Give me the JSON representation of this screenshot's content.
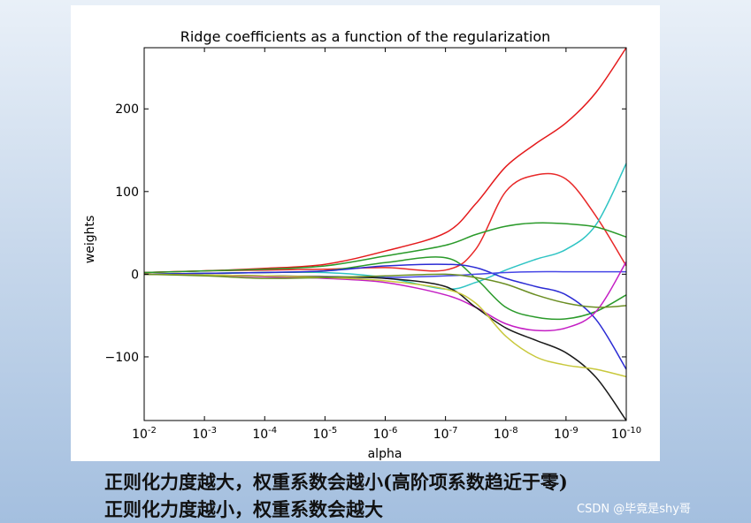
{
  "chart_data": {
    "type": "line",
    "title": "Ridge coefficients as a function of the regularization",
    "xlabel": "alpha",
    "ylabel": "weights",
    "x_scale": "log",
    "x_inverted": true,
    "xlim": [
      0.01,
      1e-10
    ],
    "ylim": [
      -177,
      274
    ],
    "x_ticks": [
      {
        "base": "10",
        "exp": "-2"
      },
      {
        "base": "10",
        "exp": "-3"
      },
      {
        "base": "10",
        "exp": "-4"
      },
      {
        "base": "10",
        "exp": "-5"
      },
      {
        "base": "10",
        "exp": "-6"
      },
      {
        "base": "10",
        "exp": "-7"
      },
      {
        "base": "10",
        "exp": "-8"
      },
      {
        "base": "10",
        "exp": "-9"
      },
      {
        "base": "10",
        "exp": "-10"
      }
    ],
    "y_ticks": [
      "200",
      "100",
      "0",
      "−100"
    ],
    "y_tick_values": [
      200,
      100,
      0,
      -100
    ],
    "grid": false,
    "alpha_exponents": [
      -2,
      -3,
      -4,
      -5,
      -6,
      -7,
      -7.5,
      -8,
      -8.5,
      -9,
      -9.5,
      -10
    ],
    "series": [
      {
        "color": "#e41a1c",
        "values": [
          2,
          4,
          7,
          12,
          28,
          50,
          85,
          130,
          158,
          183,
          220,
          274
        ]
      },
      {
        "color": "#e82828",
        "values": [
          2,
          4,
          5,
          6,
          8,
          5,
          30,
          100,
          120,
          115,
          70,
          10
        ]
      },
      {
        "color": "#2ec4c4",
        "values": [
          0,
          1,
          2,
          2,
          -4,
          -18,
          -10,
          5,
          18,
          30,
          60,
          134
        ]
      },
      {
        "color": "#2a9a2a",
        "values": [
          2,
          4,
          6,
          10,
          22,
          35,
          48,
          58,
          62,
          61,
          57,
          45
        ]
      },
      {
        "color": "#2a9a2a",
        "values": [
          0,
          1,
          2,
          4,
          14,
          20,
          -5,
          -40,
          -52,
          -54,
          -45,
          -25
        ]
      },
      {
        "color": "#2b2bd4",
        "values": [
          0,
          1,
          2,
          4,
          10,
          12,
          8,
          -5,
          -15,
          -25,
          -55,
          -115
        ]
      },
      {
        "color": "#4646e6",
        "values": [
          0,
          -1,
          -2,
          -3,
          -4,
          -2,
          0,
          2,
          3,
          3,
          3,
          3
        ]
      },
      {
        "color": "#c41ec4",
        "values": [
          0,
          -1,
          -3,
          -5,
          -10,
          -25,
          -40,
          -60,
          -68,
          -65,
          -45,
          15
        ]
      },
      {
        "color": "#1a1a1a",
        "values": [
          0,
          -1,
          -2,
          -3,
          -5,
          -15,
          -40,
          -65,
          -80,
          -95,
          -125,
          -177
        ]
      },
      {
        "color": "#c8c83c",
        "values": [
          0,
          -1,
          -2,
          -4,
          -8,
          -18,
          -35,
          -75,
          -100,
          -110,
          -115,
          -124
        ]
      },
      {
        "color": "#6b8e23",
        "values": [
          0,
          -2,
          -5,
          -4,
          -2,
          0,
          -4,
          -12,
          -25,
          -35,
          -40,
          -38
        ]
      }
    ]
  },
  "captions": {
    "line1": "正则化力度越大，权重系数会越小(高阶项系数趋近于零)",
    "line2": "正则化力度越小，权重系数会越大"
  },
  "watermark": "CSDN @毕竟是shy哥"
}
